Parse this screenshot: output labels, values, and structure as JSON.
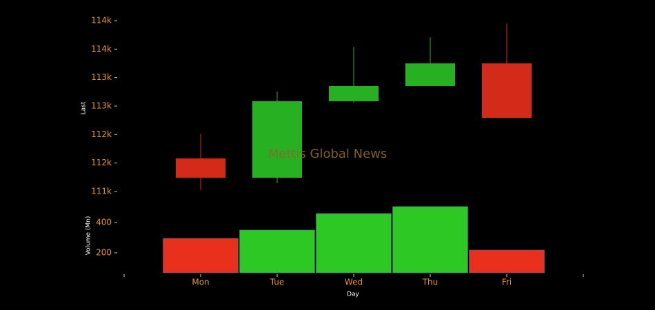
{
  "chart_data": {
    "type": "candlestick",
    "categories": [
      "Mon",
      "Tue",
      "Wed",
      "Thu",
      "Fri"
    ],
    "open": [
      111581,
      111242,
      112585,
      112851,
      113250
    ],
    "high": [
      112016,
      112754,
      113540,
      113710,
      113952
    ],
    "low": [
      111024,
      111145,
      112560,
      112851,
      112294
    ],
    "close": [
      111242,
      112585,
      112851,
      113250,
      112294
    ],
    "volume": [
      295,
      350,
      459,
      505,
      218
    ],
    "up_color": "#28b023",
    "down_color": "#d42a1a",
    "volume_up_color": "#2ec825",
    "volume_down_color": "#e8301c",
    "ylim": [
      110915,
      114121
    ],
    "yticks": [
      {
        "value": 111000,
        "label": "111k"
      },
      {
        "value": 111500,
        "label": "112k"
      },
      {
        "value": 112000,
        "label": "112k"
      },
      {
        "value": 112500,
        "label": "113k"
      },
      {
        "value": 113000,
        "label": "113k"
      },
      {
        "value": 113500,
        "label": "114k"
      },
      {
        "value": 114000,
        "label": "114k"
      }
    ],
    "volume_ylim": [
      68,
      536
    ],
    "volume_yticks": [
      200,
      400
    ],
    "ylabel": "Last",
    "volume_label": "Volume (Mn)",
    "xlabel": "Day",
    "watermark": "Mettis Global News"
  }
}
